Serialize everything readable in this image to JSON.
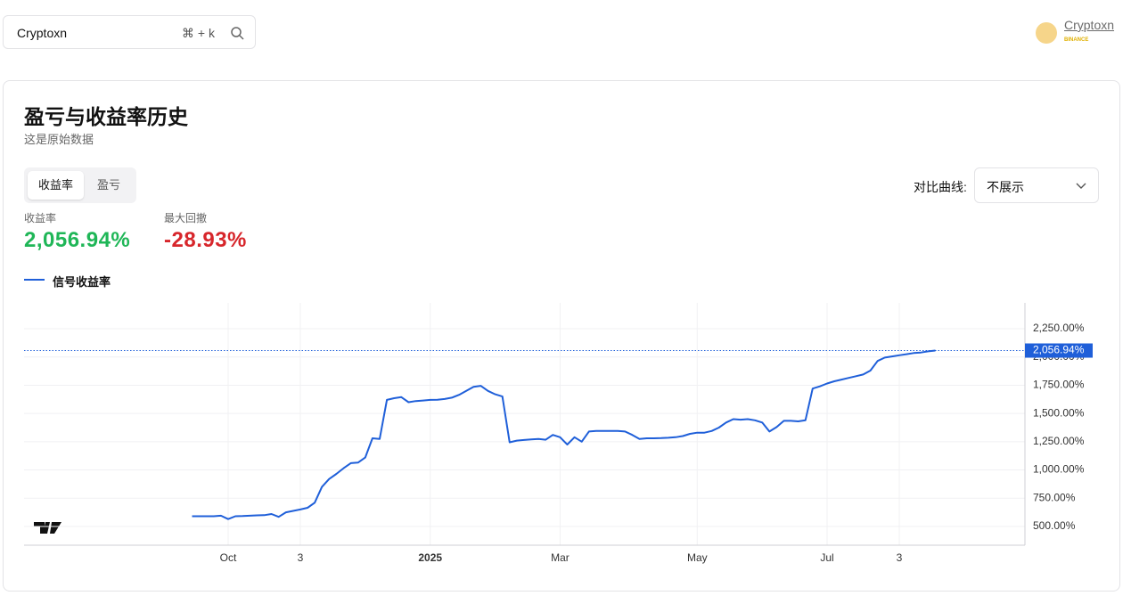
{
  "header": {
    "search": {
      "text": "Cryptoxn",
      "shortcut": "⌘ + k"
    },
    "user": {
      "name": "Cryptoxn",
      "badge": "BINANCE"
    }
  },
  "card": {
    "title": "盈亏与收益率历史",
    "subtitle": "这是原始数据",
    "tabs": [
      "收益率",
      "盈亏"
    ],
    "stats": [
      {
        "label": "收益率",
        "value": "2,056.94%"
      },
      {
        "label": "最大回撤",
        "value": "-28.93%"
      }
    ],
    "compare_label": "对比曲线:",
    "compare_value": "不展示"
  },
  "chart_data": {
    "type": "line",
    "categories": [
      null,
      null,
      null,
      null,
      null,
      "Oct",
      null,
      null,
      null,
      null,
      null,
      null,
      null,
      null,
      null,
      "3",
      null,
      null,
      null,
      null,
      null,
      null,
      null,
      null,
      null,
      null,
      null,
      null,
      null,
      null,
      null,
      null,
      null,
      "2025",
      null,
      null,
      null,
      null,
      null,
      null,
      null,
      null,
      null,
      null,
      null,
      null,
      null,
      null,
      null,
      null,
      null,
      "Mar",
      null,
      null,
      null,
      null,
      null,
      null,
      null,
      null,
      null,
      null,
      null,
      null,
      null,
      null,
      null,
      null,
      null,
      null,
      "May",
      null,
      null,
      null,
      null,
      null,
      null,
      null,
      null,
      null,
      null,
      null,
      null,
      null,
      null,
      null,
      null,
      null,
      "Jul",
      null,
      null,
      null,
      null,
      null,
      null,
      null,
      null,
      null,
      "3",
      null,
      null,
      null,
      null,
      null
    ],
    "series": [
      {
        "name": "信号收益率",
        "color": "#1f5fd9",
        "values": [
          590,
          590,
          590,
          590,
          595,
          565,
          590,
          592,
          595,
          598,
          600,
          610,
          585,
          625,
          638,
          650,
          665,
          710,
          850,
          920,
          965,
          1015,
          1060,
          1065,
          1110,
          1280,
          1275,
          1620,
          1635,
          1645,
          1600,
          1610,
          1615,
          1620,
          1622,
          1628,
          1640,
          1665,
          1700,
          1735,
          1745,
          1700,
          1670,
          1650,
          1245,
          1260,
          1265,
          1270,
          1275,
          1268,
          1310,
          1290,
          1225,
          1290,
          1250,
          1340,
          1345,
          1345,
          1345,
          1345,
          1340,
          1310,
          1275,
          1280,
          1280,
          1282,
          1285,
          1290,
          1300,
          1320,
          1330,
          1330,
          1345,
          1375,
          1420,
          1450,
          1445,
          1450,
          1440,
          1420,
          1340,
          1380,
          1435,
          1435,
          1430,
          1440,
          1720,
          1740,
          1765,
          1785,
          1800,
          1815,
          1830,
          1845,
          1880,
          1965,
          1995,
          2005,
          2015,
          2025,
          2035,
          2040,
          2050,
          2056.94
        ],
        "value_labels": [
          null,
          null,
          null,
          null,
          null,
          null,
          null,
          null,
          null,
          null,
          null,
          null,
          null,
          null,
          null,
          null,
          null,
          null,
          null,
          null,
          null,
          null,
          null,
          null,
          null,
          null,
          null,
          null,
          null,
          null,
          null,
          null,
          null,
          null,
          null,
          null,
          null,
          null,
          null,
          null,
          null,
          null,
          null,
          null,
          null,
          null,
          null,
          null,
          null,
          null,
          null,
          null,
          null,
          null,
          null,
          null,
          null,
          null,
          null,
          null,
          null,
          null,
          null,
          null,
          null,
          null,
          null,
          null,
          null,
          null,
          null,
          null,
          null,
          null,
          null,
          null,
          null,
          null,
          null,
          null,
          null,
          null,
          null,
          null,
          null,
          null,
          null,
          null,
          null,
          null,
          null,
          null,
          null,
          null,
          null,
          null,
          null,
          null,
          null,
          null,
          null,
          null,
          null,
          "2,056.94%"
        ]
      }
    ],
    "ylim": [
      334,
      2479
    ],
    "yticks": [
      {
        "value": 500,
        "label": "500.00%"
      },
      {
        "value": 750,
        "label": "750.00%"
      },
      {
        "value": 1000,
        "label": "1,000.00%"
      },
      {
        "value": 1250,
        "label": "1,250.00%"
      },
      {
        "value": 1500,
        "label": "1,500.00%"
      },
      {
        "value": 1750,
        "label": "1,750.00%"
      },
      {
        "value": 2000,
        "label": "2,000.00%"
      },
      {
        "value": 2250,
        "label": "2,250.00%"
      }
    ],
    "grid": true
  }
}
